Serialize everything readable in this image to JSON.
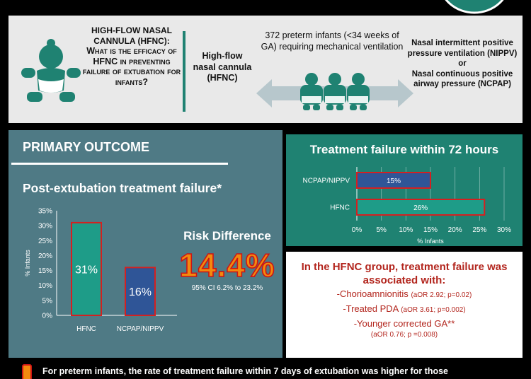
{
  "header": {
    "question_line1": "HIGH-FLOW NASAL",
    "question_line2": "CANNULA (HFNC):",
    "question_rest": "What is the efficacy of HFNC in preventing failure of extubation for infants?",
    "hfnc_label": "High-flow nasal cannula (HFNC)",
    "population": "372 preterm infants (<34 weeks of GA) requiring mechanical ventilation",
    "nippv_label": "Nasal intermittent positive pressure ventilation (NIPPV)",
    "or_label": "or",
    "ncpap_label": "Nasal continuous positive airway pressure (NCPAP)"
  },
  "primary": {
    "heading": "PRIMARY OUTCOME",
    "subtitle": "Post-extubation treatment failure*",
    "risk_title": "Risk Difference",
    "risk_value": "14.4%",
    "risk_ci": "95% CI 6.2% to 23.2%"
  },
  "right_chart": {
    "title": "Treatment failure within 72 hours"
  },
  "association": {
    "heading_line1": "In the HFNC group, treatment failure was",
    "heading_line2": "associated with:",
    "item1": "-Chorioamnionitis",
    "item1_stats": "(aOR 2.92; p=0.02)",
    "item2": "-Treated PDA",
    "item2_stats": "(aOR 3.61; p=0.002)",
    "item3": "-Younger corrected GA**",
    "item3_stats": "(aOR 0.76; p =0.008)"
  },
  "bottom": {
    "text": "For preterm infants, the rate of treatment failure within 7 days of extubation was higher for those"
  },
  "colors": {
    "teal": "#1f8272",
    "bar_teal": "#1e9c88",
    "bar_blue": "#2f5597",
    "bar_outline": "#d42020",
    "panel_slate": "#4f7a85",
    "risk_orange": "#f28a0e",
    "assoc_red": "#b3261e"
  },
  "chart_data": [
    {
      "type": "bar",
      "title": "Post-extubation treatment failure*",
      "categories": [
        "HFNC",
        "NCPAP/NIPPV"
      ],
      "values": [
        31,
        16
      ],
      "data_labels": [
        "31%",
        "16%"
      ],
      "ylabel": "% Infants",
      "ylim": [
        0,
        35
      ],
      "yticks": [
        "0%",
        "5%",
        "10%",
        "15%",
        "20%",
        "25%",
        "30%",
        "35%"
      ],
      "grid": false
    },
    {
      "type": "bar",
      "orientation": "horizontal",
      "title": "Treatment failure within 72 hours",
      "categories": [
        "NCPAP/NIPPV",
        "HFNC"
      ],
      "values": [
        15,
        26
      ],
      "data_labels": [
        "15%",
        "26%"
      ],
      "xlabel": "% Infants",
      "xlim": [
        0,
        30
      ],
      "xticks": [
        "0%",
        "5%",
        "10%",
        "15%",
        "20%",
        "25%",
        "30%"
      ],
      "grid": true
    }
  ]
}
